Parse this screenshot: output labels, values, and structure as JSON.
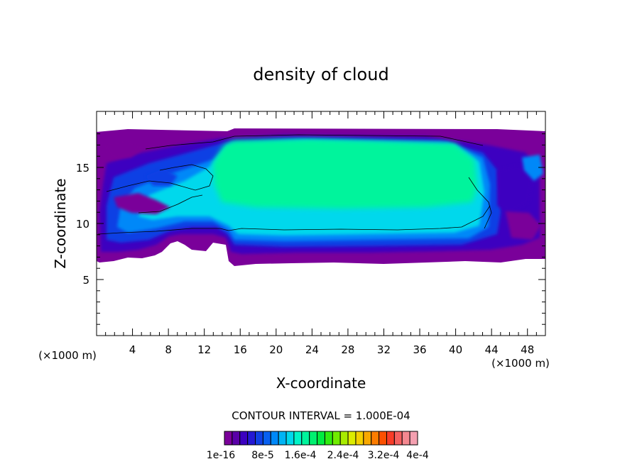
{
  "chart_data": {
    "type": "heatmap",
    "title": "density of cloud",
    "xlabel": "X-coordinate",
    "ylabel": "Z-coordinate",
    "x_unit_left": "(×1000 m)",
    "x_unit_right": "(×1000 m)",
    "xlim": [
      0,
      50
    ],
    "ylim": [
      0,
      20
    ],
    "x_ticks": [
      4,
      8,
      12,
      16,
      20,
      24,
      28,
      32,
      36,
      40,
      44,
      48
    ],
    "y_ticks": [
      5,
      10,
      15
    ],
    "contour_interval_label": "CONTOUR INTERVAL = 1.000E-04",
    "colorbar": {
      "tick_labels": [
        "1e-16",
        "8e-5",
        "1.6e-4",
        "2.4e-4",
        "3.2e-4",
        "4e-4"
      ],
      "colors": [
        "#7a009a",
        "#5a00a8",
        "#3c00c0",
        "#2418d4",
        "#1040e4",
        "#0860f0",
        "#0088f8",
        "#00b4f4",
        "#00d8ec",
        "#00f4c8",
        "#00f49c",
        "#00f070",
        "#00ec40",
        "#30ec10",
        "#70ec00",
        "#a8ec00",
        "#dcec00",
        "#f4d000",
        "#f8a800",
        "#fc7c00",
        "#fc5000",
        "#f83c28",
        "#f46060",
        "#f48890",
        "#f4a0b0"
      ]
    },
    "field_levels": {
      "background_min": "1e-16",
      "core_level_color": "#00f49c",
      "core_region": {
        "x": [
          15.5,
          42
        ],
        "z": [
          10.5,
          17.5
        ]
      },
      "cloud_region": {
        "x": [
          0,
          50
        ],
        "z": [
          6.5,
          18
        ]
      },
      "contour_line_z": 9.2
    }
  }
}
